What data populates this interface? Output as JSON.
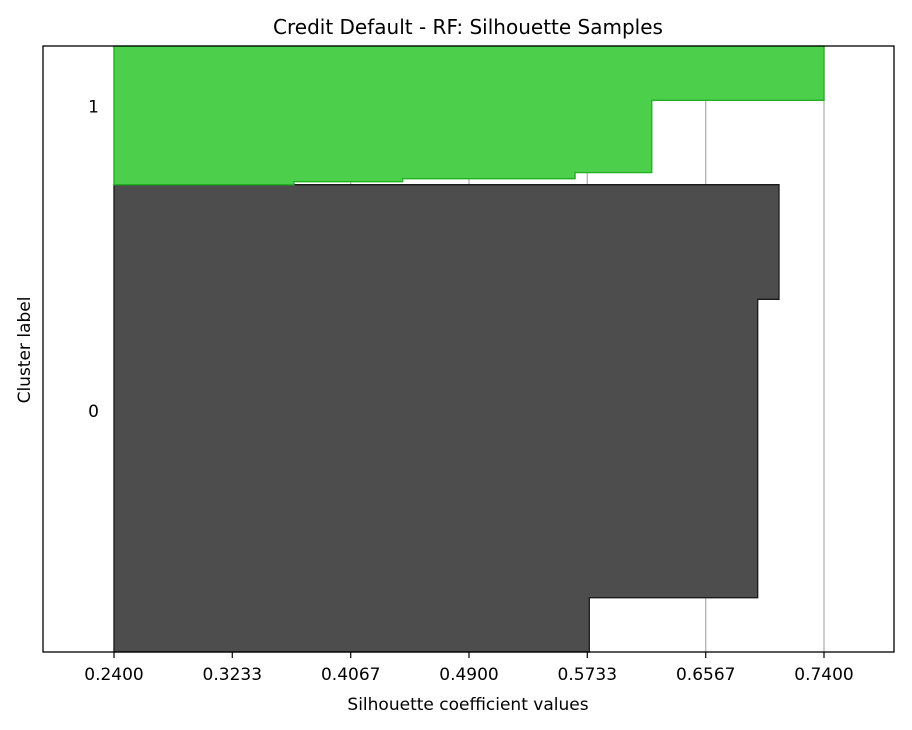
{
  "chart_data": {
    "type": "area",
    "title": "Credit Default - RF: Silhouette Samples",
    "xlabel": "Silhouette coefficient values",
    "ylabel": "Cluster label",
    "xlim": [
      0.24,
      0.74
    ],
    "x_ticks": [
      0.24,
      0.3233,
      0.4067,
      0.49,
      0.5733,
      0.6567,
      0.74
    ],
    "x_tick_labels": [
      "0.2400",
      "0.3233",
      "0.4067",
      "0.4900",
      "0.5733",
      "0.6567",
      "0.7400"
    ],
    "grid": "x",
    "ylim": [
      0,
      201
    ],
    "clusters": [
      {
        "label": "0",
        "color": "#4d4d4d",
        "edge_color": "#1a1a1a",
        "y_start": 0,
        "y_end": 155,
        "y_tick": 80,
        "steps": [
          {
            "y0": 0,
            "y1": 18,
            "x": 0.5747
          },
          {
            "y0": 18,
            "y1": 117,
            "x": 0.6933
          },
          {
            "y0": 117,
            "y1": 155,
            "x": 0.7083
          }
        ]
      },
      {
        "label": "1",
        "color": "#4cd04c",
        "edge_color": "#20b020",
        "y_start": 155,
        "y_end": 201,
        "y_tick": 181,
        "steps": [
          {
            "y0": 155,
            "y1": 156,
            "x": 0.3667
          },
          {
            "y0": 156,
            "y1": 157,
            "x": 0.4433
          },
          {
            "y0": 157,
            "y1": 159,
            "x": 0.5647
          },
          {
            "y0": 159,
            "y1": 183,
            "x": 0.6187
          },
          {
            "y0": 183,
            "y1": 201,
            "x": 0.74
          }
        ]
      }
    ]
  }
}
